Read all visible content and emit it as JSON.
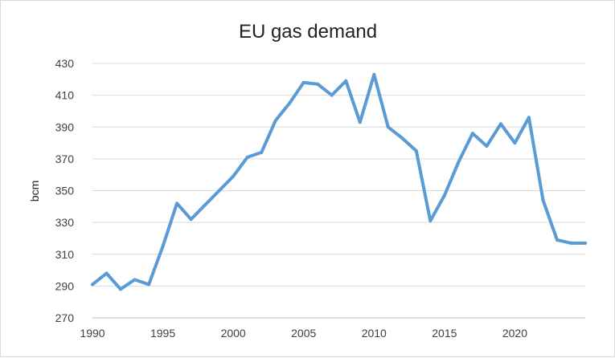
{
  "chart_data": {
    "type": "line",
    "title": "EU gas demand",
    "xlabel": "",
    "ylabel": "bcm",
    "xlim": [
      1990,
      2025
    ],
    "ylim": [
      270,
      430
    ],
    "x_ticks": [
      1990,
      1995,
      2000,
      2005,
      2010,
      2015,
      2020
    ],
    "y_ticks": [
      270,
      290,
      310,
      330,
      350,
      370,
      390,
      410,
      430
    ],
    "grid": true,
    "legend": "none",
    "series": [
      {
        "color": "#5b9bd5",
        "points": [
          [
            1990,
            291
          ],
          [
            1991,
            298
          ],
          [
            1992,
            288
          ],
          [
            1993,
            294
          ],
          [
            1994,
            291
          ],
          [
            1995,
            315
          ],
          [
            1996,
            342
          ],
          [
            1997,
            332
          ],
          [
            1998,
            341
          ],
          [
            1999,
            350
          ],
          [
            2000,
            359
          ],
          [
            2001,
            371
          ],
          [
            2002,
            374
          ],
          [
            2003,
            394
          ],
          [
            2004,
            405
          ],
          [
            2005,
            418
          ],
          [
            2006,
            417
          ],
          [
            2007,
            410
          ],
          [
            2008,
            419
          ],
          [
            2009,
            393
          ],
          [
            2010,
            423
          ],
          [
            2011,
            390
          ],
          [
            2012,
            383
          ],
          [
            2013,
            375
          ],
          [
            2014,
            331
          ],
          [
            2015,
            347
          ],
          [
            2016,
            368
          ],
          [
            2017,
            386
          ],
          [
            2018,
            378
          ],
          [
            2019,
            392
          ],
          [
            2020,
            380
          ],
          [
            2021,
            396
          ],
          [
            2022,
            344
          ],
          [
            2023,
            319
          ],
          [
            2024,
            317
          ],
          [
            2025,
            317
          ]
        ]
      }
    ]
  }
}
